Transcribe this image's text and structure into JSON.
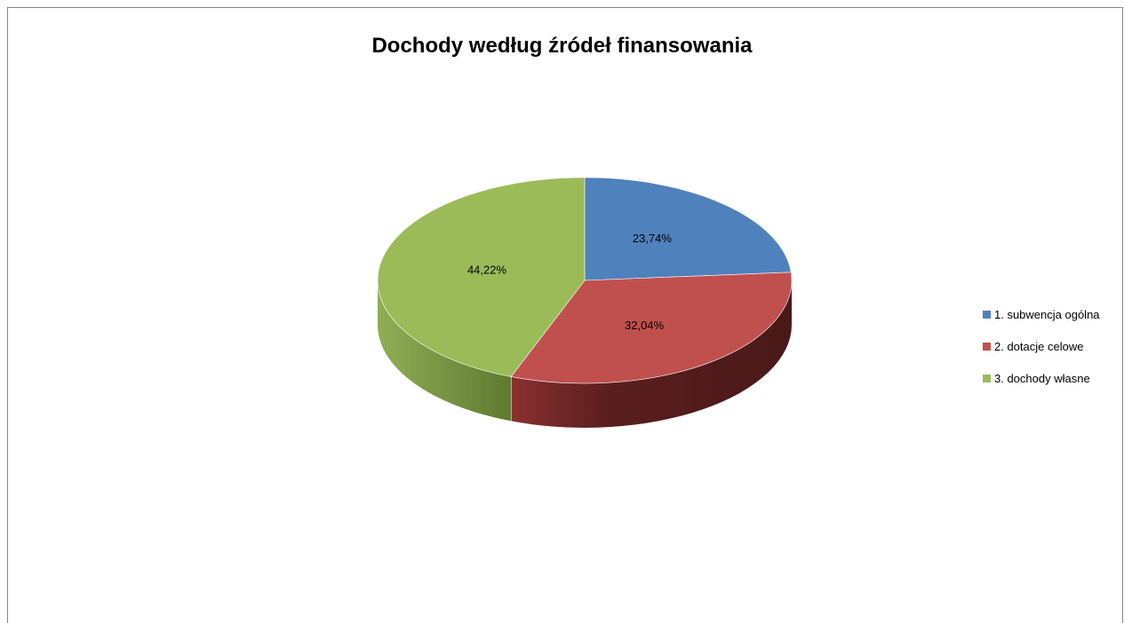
{
  "chart_data": {
    "type": "pie",
    "title": "Dochody według źródeł finansowania",
    "categories": [
      "1. subwencja ogólna",
      "2. dotacje celowe",
      "3. dochody własne"
    ],
    "values": [
      23.74,
      32.04,
      44.22
    ],
    "data_labels": [
      "23,74%",
      "32,04%",
      "44,22%"
    ],
    "colors": [
      "#4f81bd",
      "#c0504d",
      "#9bbb59"
    ],
    "side_colors": [
      "#3a6190",
      "#6b2424",
      "#6f8a3a"
    ],
    "legend_position": "right",
    "style": "3d"
  }
}
